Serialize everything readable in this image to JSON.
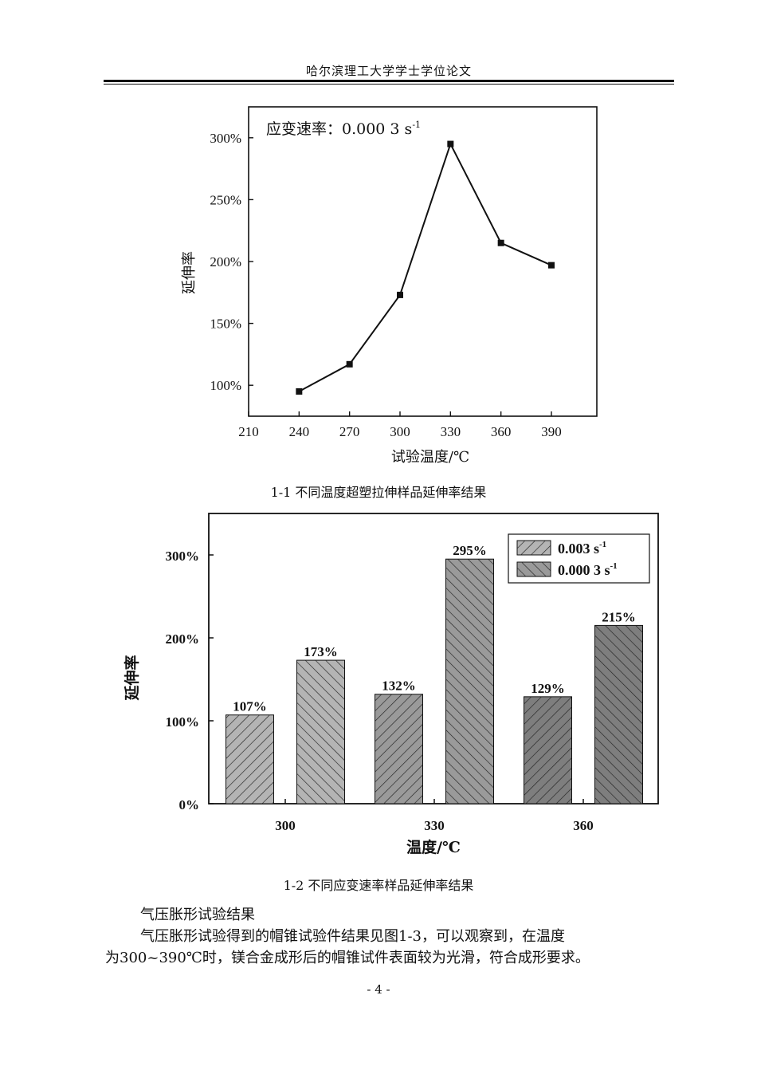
{
  "page": {
    "header": "哈尔滨理工大学学士学位论文",
    "page_number": "- 4 -"
  },
  "figure1": {
    "caption": "1-1 不同温度超塑拉伸样品延伸率结果",
    "annotation": "应变速率：0.000 3 s",
    "annotation_sup": "-1",
    "xlabel": "试验温度/℃",
    "ylabel": "延伸率"
  },
  "figure2": {
    "caption": "1-2 不同应变速率样品延伸率结果",
    "xlabel": "温度/℃",
    "ylabel": "延伸率"
  },
  "text": {
    "heading": "气压胀形试验结果",
    "para_line1": "气压胀形试验得到的帽锥试验件结果见图1-3，可以观察到，在温度",
    "para_line2": "为300~390℃时，镁合金成形后的帽锥试件表面较为光滑，符合成形要求。"
  },
  "chart_data": [
    {
      "type": "line",
      "x": [
        240,
        270,
        300,
        330,
        360,
        390
      ],
      "y": [
        95,
        117,
        173,
        295,
        215,
        197
      ],
      "xticks": [
        210,
        240,
        270,
        300,
        330,
        360,
        390
      ],
      "xtick_labels": [
        "210",
        "240",
        "270",
        "300",
        "330",
        "360",
        "390"
      ],
      "yticks": [
        100,
        150,
        200,
        250,
        300
      ],
      "ytick_labels": [
        "100%",
        "150%",
        "200%",
        "250%",
        "300%"
      ],
      "xlim": [
        210,
        417
      ],
      "ylim": [
        75,
        325
      ],
      "xlabel": "试验温度/℃",
      "ylabel": "延伸率",
      "annotation": "应变速率：0.000 3 s-1",
      "color": "#111111"
    },
    {
      "type": "bar",
      "categories": [
        "300",
        "330",
        "360"
      ],
      "series": [
        {
          "name": "0.003 s",
          "name_sup": "-1",
          "values": [
            107,
            132,
            129
          ],
          "labels": [
            "107%",
            "132%",
            "129%"
          ],
          "hatch": "forward"
        },
        {
          "name": "0.000 3 s",
          "name_sup": "-1",
          "values": [
            173,
            295,
            215
          ],
          "labels": [
            "173%",
            "295%",
            "215%"
          ],
          "hatch": "backward"
        }
      ],
      "bar_fills": [
        "#b4b4b4",
        "#9a9a9a",
        "#7e7e7e"
      ],
      "yticks": [
        0,
        100,
        200,
        300
      ],
      "ytick_labels": [
        "0%",
        "100%",
        "200%",
        "300%"
      ],
      "ylim": [
        0,
        350
      ],
      "xlabel": "温度/℃",
      "ylabel": "延伸率",
      "legend": "top-right"
    }
  ]
}
